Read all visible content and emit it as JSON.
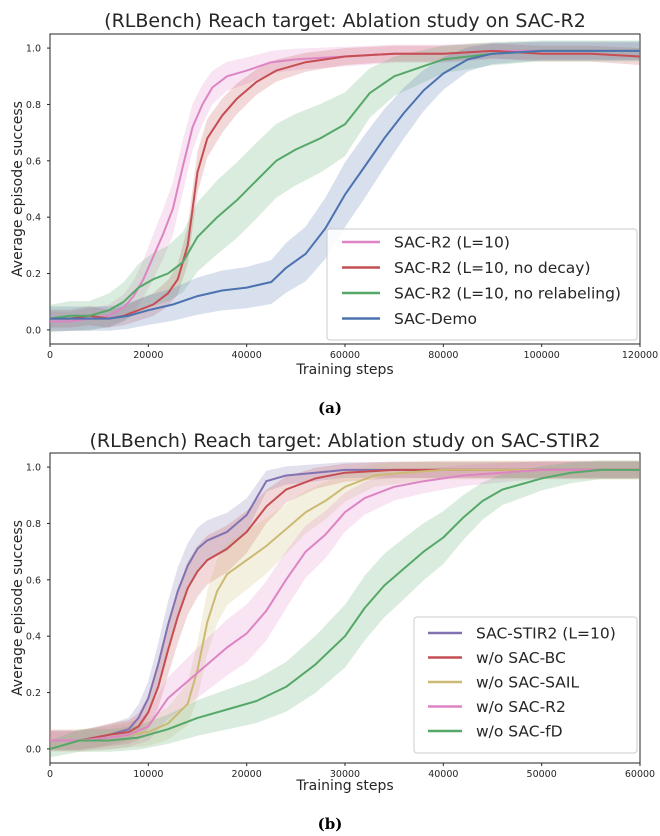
{
  "chart_data": [
    {
      "type": "line",
      "title": "(RLBench) Reach target: Ablation study on SAC-R2",
      "xlabel": "Training steps",
      "ylabel": "Average episode success",
      "xlim": [
        0,
        120000
      ],
      "ylim": [
        -0.05,
        1.05
      ],
      "xticks": [
        0,
        20000,
        40000,
        60000,
        80000,
        100000,
        120000
      ],
      "yticks": [
        0.0,
        0.2,
        0.4,
        0.6,
        0.8,
        1.0
      ],
      "ytick_labels": [
        "0.0",
        "0.2",
        "0.4",
        "0.6",
        "0.8",
        "1.0"
      ],
      "grid": false,
      "legend_position": "lower-right",
      "caption": "(a)",
      "series": [
        {
          "name": "SAC-R2 (L=10)",
          "color": "#dd84c4",
          "x": [
            0,
            4000,
            8000,
            12000,
            15000,
            17000,
            19000,
            21000,
            23000,
            25000,
            27000,
            29000,
            31000,
            33000,
            36000,
            40000,
            45000,
            50000,
            60000,
            70000,
            80000,
            90000,
            100000,
            110000,
            120000
          ],
          "y": [
            0.03,
            0.03,
            0.04,
            0.05,
            0.08,
            0.12,
            0.18,
            0.26,
            0.34,
            0.43,
            0.58,
            0.72,
            0.8,
            0.86,
            0.9,
            0.92,
            0.95,
            0.96,
            0.97,
            0.98,
            0.98,
            0.99,
            0.99,
            0.99,
            0.99
          ],
          "band": 0.08
        },
        {
          "name": "SAC-R2 (L=10, no decay)",
          "color": "#c44e52",
          "x": [
            0,
            4000,
            8000,
            12000,
            15000,
            18000,
            21000,
            24000,
            26000,
            28000,
            30000,
            32000,
            35000,
            38000,
            42000,
            46000,
            52000,
            60000,
            70000,
            80000,
            90000,
            100000,
            110000,
            120000
          ],
          "y": [
            0.04,
            0.04,
            0.05,
            0.04,
            0.05,
            0.07,
            0.09,
            0.13,
            0.18,
            0.3,
            0.56,
            0.68,
            0.76,
            0.82,
            0.88,
            0.92,
            0.95,
            0.97,
            0.98,
            0.98,
            0.99,
            0.98,
            0.98,
            0.97
          ],
          "band": 0.06
        },
        {
          "name": "SAC-R2 (L=10, no relabeling)",
          "color": "#55a868",
          "x": [
            0,
            4000,
            8000,
            12000,
            15000,
            18000,
            21000,
            24000,
            27000,
            30000,
            34000,
            38000,
            42000,
            46000,
            50000,
            55000,
            60000,
            65000,
            70000,
            75000,
            80000,
            90000,
            100000,
            110000,
            120000
          ],
          "y": [
            0.04,
            0.05,
            0.05,
            0.07,
            0.1,
            0.15,
            0.18,
            0.2,
            0.24,
            0.33,
            0.4,
            0.46,
            0.53,
            0.6,
            0.64,
            0.68,
            0.73,
            0.84,
            0.9,
            0.93,
            0.96,
            0.98,
            0.99,
            0.99,
            0.99
          ],
          "band": 0.12
        },
        {
          "name": "SAC-Demo",
          "color": "#4c72b0",
          "x": [
            0,
            4000,
            8000,
            12000,
            16000,
            20000,
            25000,
            30000,
            35000,
            40000,
            45000,
            48000,
            52000,
            56000,
            60000,
            64000,
            68000,
            72000,
            76000,
            80000,
            85000,
            90000,
            100000,
            110000,
            120000
          ],
          "y": [
            0.04,
            0.04,
            0.04,
            0.04,
            0.05,
            0.07,
            0.09,
            0.12,
            0.14,
            0.15,
            0.17,
            0.22,
            0.27,
            0.36,
            0.48,
            0.58,
            0.68,
            0.77,
            0.85,
            0.91,
            0.96,
            0.98,
            0.99,
            0.99,
            0.99
          ],
          "band": 0.1
        }
      ]
    },
    {
      "type": "line",
      "title": "(RLBench) Reach target: Ablation study on SAC-STIR2",
      "xlabel": "Training steps",
      "ylabel": "Average episode success",
      "xlim": [
        0,
        60000
      ],
      "ylim": [
        -0.05,
        1.05
      ],
      "xticks": [
        0,
        10000,
        20000,
        30000,
        40000,
        50000,
        60000
      ],
      "yticks": [
        0.0,
        0.2,
        0.4,
        0.6,
        0.8,
        1.0
      ],
      "ytick_labels": [
        "0.0",
        "0.2",
        "0.4",
        "0.6",
        "0.8",
        "1.0"
      ],
      "grid": false,
      "legend_position": "lower-right",
      "caption": "(b)",
      "series": [
        {
          "name": "SAC-STIR2 (L=10)",
          "color": "#8172b2",
          "x": [
            0,
            3000,
            6000,
            8000,
            9000,
            10000,
            11000,
            12000,
            13000,
            14000,
            15000,
            16000,
            18000,
            20000,
            22000,
            24000,
            27000,
            30000,
            35000,
            40000,
            50000,
            60000
          ],
          "y": [
            0.03,
            0.03,
            0.05,
            0.07,
            0.11,
            0.18,
            0.3,
            0.44,
            0.56,
            0.65,
            0.71,
            0.74,
            0.77,
            0.83,
            0.95,
            0.97,
            0.98,
            0.99,
            0.99,
            0.99,
            0.99,
            0.99
          ],
          "band": 0.07
        },
        {
          "name": "w/o SAC-BC",
          "color": "#c44e52",
          "x": [
            0,
            3000,
            6000,
            8000,
            9000,
            10000,
            11000,
            12000,
            13000,
            14000,
            15000,
            16000,
            18000,
            20000,
            22000,
            24000,
            27000,
            30000,
            35000,
            40000,
            50000,
            60000
          ],
          "y": [
            0.03,
            0.03,
            0.05,
            0.06,
            0.08,
            0.13,
            0.22,
            0.35,
            0.47,
            0.57,
            0.63,
            0.67,
            0.71,
            0.77,
            0.86,
            0.92,
            0.96,
            0.98,
            0.99,
            0.99,
            0.99,
            0.99
          ],
          "band": 0.08
        },
        {
          "name": "w/o SAC-SAIL",
          "color": "#ccb974",
          "x": [
            0,
            3000,
            6000,
            8000,
            10000,
            12000,
            14000,
            15000,
            16000,
            17000,
            18000,
            20000,
            22000,
            24000,
            26000,
            28000,
            30000,
            33000,
            36000,
            40000,
            50000,
            60000
          ],
          "y": [
            0.03,
            0.03,
            0.04,
            0.05,
            0.06,
            0.09,
            0.16,
            0.28,
            0.45,
            0.56,
            0.62,
            0.67,
            0.72,
            0.78,
            0.84,
            0.88,
            0.93,
            0.97,
            0.98,
            0.99,
            0.99,
            0.99
          ],
          "band": 0.1
        },
        {
          "name": "w/o SAC-R2",
          "color": "#dd84c4",
          "x": [
            0,
            3000,
            6000,
            8000,
            10000,
            12000,
            14000,
            16000,
            18000,
            20000,
            22000,
            24000,
            26000,
            28000,
            30000,
            32000,
            35000,
            38000,
            42000,
            46000,
            50000,
            55000,
            60000
          ],
          "y": [
            0.03,
            0.03,
            0.04,
            0.05,
            0.08,
            0.18,
            0.24,
            0.3,
            0.36,
            0.41,
            0.49,
            0.6,
            0.7,
            0.76,
            0.84,
            0.89,
            0.93,
            0.95,
            0.97,
            0.98,
            0.99,
            0.99,
            0.99
          ],
          "band": 0.09
        },
        {
          "name": "w/o SAC-fD",
          "color": "#55a868",
          "x": [
            0,
            3000,
            6000,
            9000,
            12000,
            15000,
            18000,
            21000,
            24000,
            27000,
            30000,
            32000,
            34000,
            36000,
            38000,
            40000,
            42000,
            44000,
            46000,
            48000,
            50000,
            53000,
            56000,
            60000
          ],
          "y": [
            0.0,
            0.03,
            0.03,
            0.04,
            0.07,
            0.11,
            0.14,
            0.17,
            0.22,
            0.3,
            0.4,
            0.5,
            0.58,
            0.64,
            0.7,
            0.75,
            0.82,
            0.88,
            0.92,
            0.94,
            0.96,
            0.98,
            0.99,
            0.99
          ],
          "band": 0.1
        }
      ]
    }
  ]
}
